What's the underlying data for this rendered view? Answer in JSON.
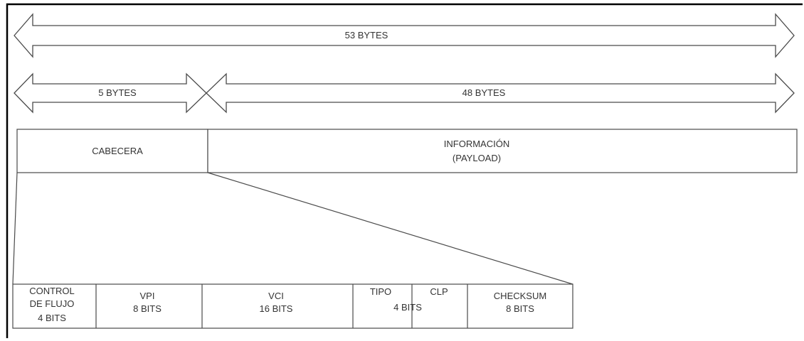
{
  "arrows": {
    "total": "53 BYTES",
    "header": "5 BYTES",
    "payload": "48 BYTES"
  },
  "cell": {
    "header_label": "CABECERA",
    "payload_line1": "INFORMACIÓN",
    "payload_line2": "(PAYLOAD)"
  },
  "header_fields": {
    "control": {
      "line1": "CONTROL",
      "line2": "DE FLUJO",
      "line3": "4 BITS"
    },
    "vpi": {
      "line1": "VPI",
      "line2": "8 BITS"
    },
    "vci": {
      "line1": "VCI",
      "line2": "16 BITS"
    },
    "tipo": {
      "label": "TIPO"
    },
    "clp": {
      "label": "CLP"
    },
    "shared_bits": "4 BITS",
    "checksum": {
      "line1": "CHECKSUM",
      "line2": "8 BITS"
    }
  }
}
